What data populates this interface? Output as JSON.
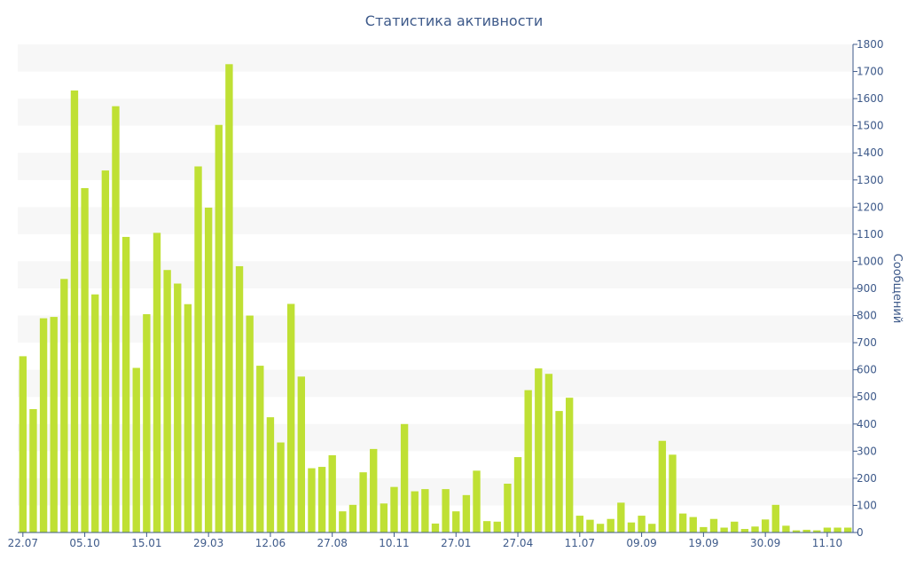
{
  "chart_data": {
    "type": "bar",
    "title": "Статистика активности",
    "ylabel": "Сообщений",
    "y_axis_side": "right",
    "ylim": [
      0,
      1800
    ],
    "y_tick_step": 100,
    "x_tick_labels": [
      "22.07",
      "05.10",
      "15.01",
      "29.03",
      "12.06",
      "27.08",
      "10.11",
      "27.01",
      "27.04",
      "11.07",
      "09.09",
      "19.09",
      "30.09",
      "11.10"
    ],
    "x_tick_indices": [
      0,
      6,
      12,
      18,
      24,
      30,
      36,
      42,
      48,
      54,
      60,
      66,
      72,
      78
    ],
    "values": [
      650,
      455,
      790,
      795,
      935,
      1630,
      1270,
      878,
      1335,
      1572,
      1090,
      607,
      805,
      1105,
      968,
      918,
      842,
      1350,
      1198,
      1503,
      1727,
      982,
      800,
      615,
      425,
      332,
      843,
      575,
      237,
      242,
      285,
      78,
      102,
      222,
      308,
      107,
      168,
      400,
      152,
      160,
      33,
      160,
      78,
      138,
      228,
      42,
      40,
      180,
      278,
      525,
      605,
      585,
      448,
      497,
      62,
      47,
      32,
      50,
      110,
      37,
      62,
      32,
      338,
      287,
      70,
      57,
      20,
      50,
      18,
      40,
      13,
      22,
      48,
      102,
      25,
      8,
      10,
      8,
      18,
      18,
      18
    ],
    "bar_color": "#bfe034",
    "band_color": "#f7f7f7",
    "grid": "alternating bands",
    "legend": "none"
  }
}
